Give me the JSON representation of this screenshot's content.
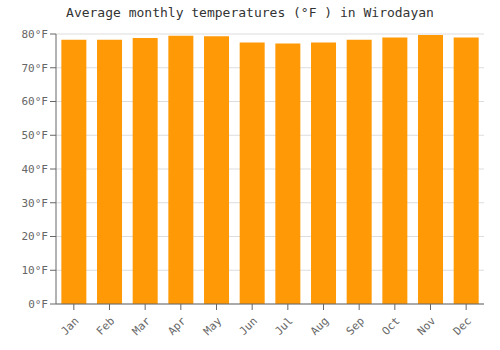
{
  "chart_data": {
    "type": "bar",
    "title": "Average monthly temperatures (°F ) in Wirodayan",
    "categories": [
      "Jan",
      "Feb",
      "Mar",
      "Apr",
      "May",
      "Jun",
      "Jul",
      "Aug",
      "Sep",
      "Oct",
      "Nov",
      "Dec"
    ],
    "values": [
      78.3,
      78.3,
      78.8,
      79.5,
      79.3,
      77.5,
      77.2,
      77.5,
      78.3,
      79.0,
      79.7,
      79.0
    ],
    "color": "#FF9905",
    "ylim": [
      0,
      80
    ],
    "yticks": [
      {
        "value": 0,
        "label": "0°F"
      },
      {
        "value": 10,
        "label": "10°F"
      },
      {
        "value": 20,
        "label": "20°F"
      },
      {
        "value": 30,
        "label": "30°F"
      },
      {
        "value": 40,
        "label": "40°F"
      },
      {
        "value": 50,
        "label": "50°F"
      },
      {
        "value": 60,
        "label": "60°F"
      },
      {
        "value": 70,
        "label": "70°F"
      },
      {
        "value": 80,
        "label": "80°F"
      }
    ],
    "grid": true
  }
}
